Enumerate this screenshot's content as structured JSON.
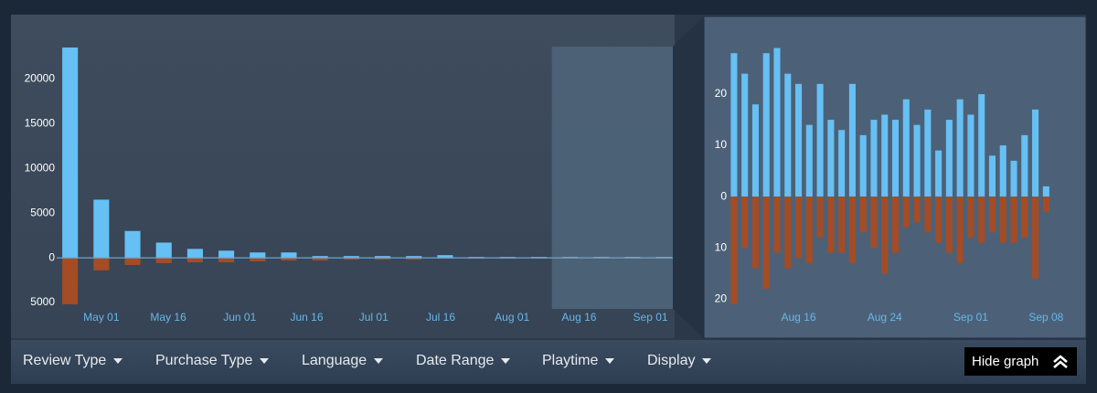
{
  "chart_data": [
    {
      "type": "bar",
      "x": [
        114,
        121,
        128,
        135,
        142,
        149,
        156,
        163,
        170,
        177,
        184,
        191,
        198,
        205,
        212,
        219,
        226,
        233,
        240,
        247
      ],
      "series": [
        {
          "color": "#66c0f4",
          "values": [
            23500,
            6500,
            3000,
            1700,
            1000,
            800,
            600,
            600,
            200,
            200,
            200,
            200,
            300,
            100,
            100,
            100,
            100,
            100,
            100,
            100
          ]
        },
        {
          "color": "#a34c25",
          "values": [
            -5200,
            -1400,
            -800,
            -600,
            -500,
            -500,
            -400,
            -300,
            -300,
            -200,
            -200,
            -200,
            -100,
            -100,
            -100,
            -100,
            -100,
            -100,
            -100,
            -100
          ]
        }
      ],
      "xlim": [
        111,
        249
      ],
      "xticks": [
        {
          "value": 121,
          "label": "May 01"
        },
        {
          "value": 136,
          "label": "May 16"
        },
        {
          "value": 152,
          "label": "Jun 01"
        },
        {
          "value": 167,
          "label": "Jun 16"
        },
        {
          "value": 182,
          "label": "Jul 01"
        },
        {
          "value": 197,
          "label": "Jul 16"
        },
        {
          "value": 213,
          "label": "Aug 01"
        },
        {
          "value": 228,
          "label": "Aug 16"
        },
        {
          "value": 244,
          "label": "Sep 01"
        }
      ],
      "ylim": [
        -5300,
        23600
      ],
      "yticks": [
        {
          "value": -5000,
          "label": "5000"
        },
        0,
        5000,
        10000,
        15000,
        20000
      ]
    },
    {
      "type": "bar",
      "x": [
        222,
        223,
        224,
        225,
        226,
        227,
        228,
        229,
        230,
        231,
        232,
        233,
        234,
        235,
        236,
        237,
        238,
        239,
        240,
        241,
        242,
        243,
        244,
        245,
        246,
        247,
        248,
        249,
        250,
        251
      ],
      "series": [
        {
          "color": "#66c0f4",
          "values": [
            28,
            24,
            18,
            28,
            29,
            24,
            22,
            14,
            22,
            15,
            13,
            22,
            12,
            15,
            16,
            15,
            19,
            14,
            17,
            9,
            15,
            19,
            16,
            20,
            8,
            10,
            7,
            12,
            17,
            2
          ]
        },
        {
          "color": "#a34c25",
          "values": [
            -21,
            -10,
            -14,
            -18,
            -11,
            -14,
            -12,
            -13,
            -8,
            -11,
            -11,
            -13,
            -7,
            -10,
            -15,
            -11,
            -6,
            -5,
            -7,
            -9,
            -11,
            -13,
            -8,
            -9,
            -7,
            -9,
            -9,
            -8,
            -16,
            -3
          ]
        }
      ],
      "xlim": [
        221.5,
        252.5
      ],
      "xticks": [
        {
          "value": 228,
          "label": "Aug 16"
        },
        {
          "value": 236,
          "label": "Aug 24"
        },
        {
          "value": 244,
          "label": "Sep 01"
        },
        {
          "value": 251,
          "label": "Sep 08"
        }
      ],
      "ylim": [
        -23,
        30
      ],
      "yticks": [
        {
          "value": -20,
          "label": "20"
        },
        {
          "value": -10,
          "label": "10"
        },
        0,
        10,
        {
          "value": 20,
          "label": "20"
        }
      ]
    }
  ],
  "controls": {
    "filters": [
      "Review Type",
      "Purchase Type",
      "Language",
      "Date Range",
      "Playtime",
      "Display"
    ],
    "hide_button": "Hide graph"
  }
}
